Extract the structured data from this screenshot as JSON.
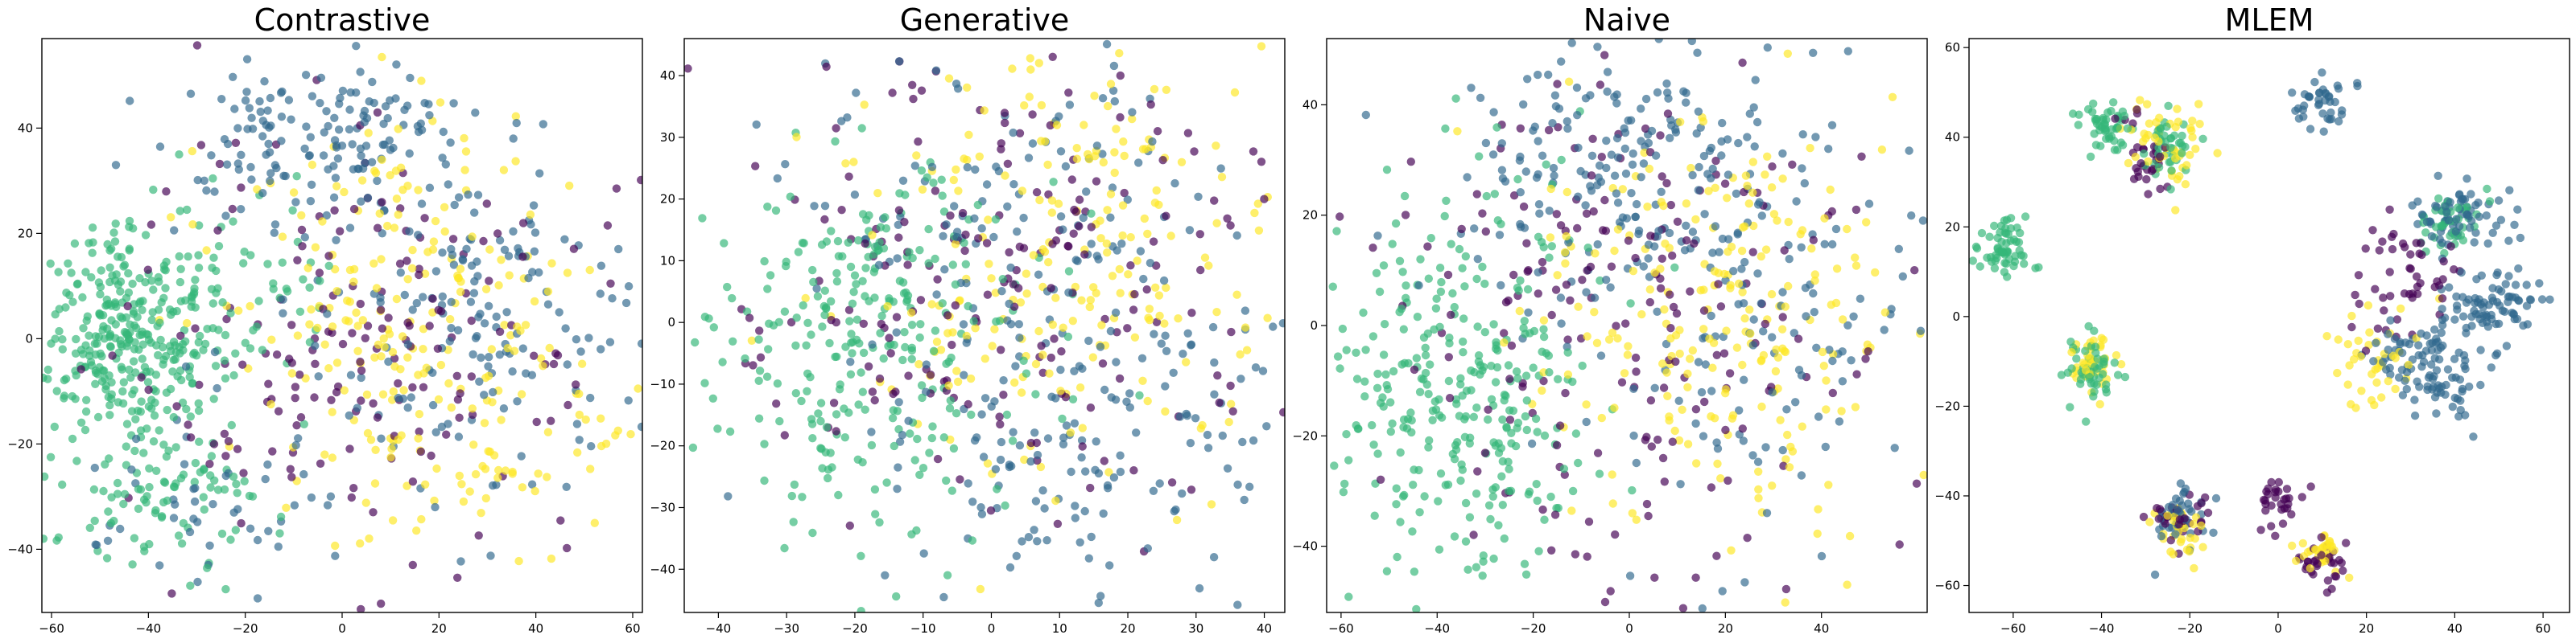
{
  "chart_data": [
    {
      "type": "scatter",
      "title": "Contrastive",
      "xlim": [
        -62,
        62
      ],
      "ylim": [
        -52,
        57
      ],
      "xticks": [
        -60,
        -40,
        -20,
        0,
        20,
        40,
        60
      ],
      "yticks": [
        -40,
        -20,
        0,
        20,
        40
      ],
      "grid": false,
      "series": [
        {
          "color": "#35b779",
          "clusters": [
            [
              -45,
              0,
              9,
              10,
              320
            ],
            [
              -38,
              -30,
              12,
              8,
              90
            ],
            [
              -20,
              10,
              10,
              10,
              60
            ]
          ]
        },
        {
          "color": "#31688e",
          "clusters": [
            [
              0,
              38,
              15,
              8,
              150
            ],
            [
              25,
              5,
              20,
              15,
              170
            ],
            [
              -25,
              -30,
              15,
              10,
              50
            ]
          ]
        },
        {
          "color": "#fde725",
          "clusters": [
            [
              10,
              15,
              20,
              15,
              130
            ],
            [
              25,
              -15,
              20,
              12,
              120
            ]
          ]
        },
        {
          "color": "#440154",
          "clusters": [
            [
              5,
              0,
              25,
              20,
              180
            ]
          ]
        }
      ]
    },
    {
      "type": "scatter",
      "title": "Generative",
      "xlim": [
        -45,
        43
      ],
      "ylim": [
        -47,
        46
      ],
      "xticks": [
        -40,
        -30,
        -20,
        -10,
        0,
        10,
        20,
        30,
        40
      ],
      "yticks": [
        -40,
        -30,
        -20,
        -10,
        0,
        10,
        20,
        30,
        40
      ],
      "grid": false,
      "series": [
        {
          "color": "#35b779",
          "clusters": [
            [
              -18,
              -2,
              12,
              16,
              280
            ]
          ]
        },
        {
          "color": "#31688e",
          "clusters": [
            [
              12,
              -10,
              18,
              20,
              230
            ],
            [
              0,
              25,
              15,
              10,
              60
            ]
          ]
        },
        {
          "color": "#fde725",
          "clusters": [
            [
              10,
              12,
              16,
              18,
              220
            ]
          ]
        },
        {
          "color": "#440154",
          "clusters": [
            [
              0,
              5,
              20,
              20,
              200
            ]
          ]
        }
      ]
    },
    {
      "type": "scatter",
      "title": "Naive",
      "xlim": [
        -63,
        62
      ],
      "ylim": [
        -52,
        52
      ],
      "xticks": [
        -60,
        -40,
        -20,
        0,
        20,
        40
      ],
      "yticks": [
        -40,
        -20,
        0,
        20,
        40
      ],
      "grid": false,
      "series": [
        {
          "color": "#35b779",
          "clusters": [
            [
              -35,
              -10,
              14,
              20,
              320
            ]
          ]
        },
        {
          "color": "#31688e",
          "clusters": [
            [
              0,
              30,
              20,
              12,
              200
            ],
            [
              25,
              -5,
              20,
              20,
              130
            ]
          ]
        },
        {
          "color": "#fde725",
          "clusters": [
            [
              20,
              0,
              20,
              20,
              220
            ]
          ]
        },
        {
          "color": "#440154",
          "clusters": [
            [
              0,
              0,
              25,
              25,
              200
            ]
          ]
        }
      ]
    },
    {
      "type": "scatter",
      "title": "MLEM",
      "xlim": [
        -70,
        66
      ],
      "ylim": [
        -66,
        62
      ],
      "xticks": [
        -60,
        -40,
        -20,
        0,
        20,
        40,
        60
      ],
      "yticks": [
        -60,
        -40,
        -20,
        0,
        20,
        40,
        60
      ],
      "grid": false,
      "series": [
        {
          "color": "#35b779",
          "clusters": [
            [
              -62,
              15,
              3,
              3,
              60
            ],
            [
              -38,
              42,
              3,
              3,
              50
            ],
            [
              -42,
              -12,
              3,
              4,
              50
            ],
            [
              -25,
              38,
              3,
              4,
              40
            ],
            [
              40,
              20,
              4,
              4,
              40
            ]
          ]
        },
        {
          "color": "#31688e",
          "clusters": [
            [
              42,
              22,
              5,
              4,
              70
            ],
            [
              48,
              2,
              6,
              5,
              80
            ],
            [
              30,
              -8,
              5,
              4,
              50
            ],
            [
              10,
              48,
              3,
              3,
              40
            ],
            [
              -22,
              -45,
              3,
              4,
              40
            ],
            [
              38,
              -15,
              5,
              4,
              50
            ]
          ]
        },
        {
          "color": "#fde725",
          "clusters": [
            [
              -25,
              38,
              4,
              5,
              50
            ],
            [
              -42,
              -10,
              3,
              3,
              40
            ],
            [
              10,
              -52,
              3,
              3,
              30
            ],
            [
              -22,
              -48,
              3,
              4,
              30
            ],
            [
              20,
              -10,
              6,
              6,
              40
            ]
          ]
        },
        {
          "color": "#440154",
          "clusters": [
            [
              -22,
              -45,
              3,
              3,
              30
            ],
            [
              10,
              -55,
              3,
              3,
              30
            ],
            [
              0,
              -42,
              3,
              3,
              30
            ],
            [
              28,
              10,
              6,
              6,
              50
            ],
            [
              -30,
              35,
              4,
              4,
              30
            ]
          ]
        }
      ]
    }
  ]
}
